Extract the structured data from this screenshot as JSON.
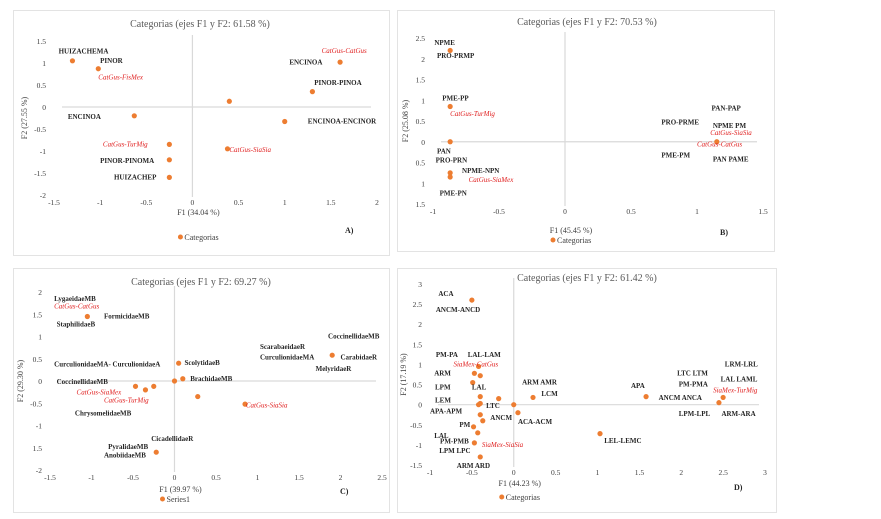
{
  "colors": {
    "point": "#ed7d31",
    "axis": "#d9d9d9",
    "red_label": "#e02020",
    "text": "#262626"
  },
  "chart_data": [
    {
      "id": "A",
      "type": "scatter",
      "title": "Categorias (ejes F1 y F2: 61.58 %)",
      "xlabel": "F1 (34.04 %)",
      "ylabel": "F2 (27.55 %)",
      "xlim": [
        -1.5,
        2
      ],
      "ylim": [
        -2,
        1.5
      ],
      "xticks": [
        "-1.5",
        "-1",
        "-0.5",
        "0",
        "0.5",
        "1",
        "1.5",
        "2"
      ],
      "yticks": [
        "1.5",
        "1",
        "0.5",
        "0",
        "-0.5",
        "-1",
        "-1.5",
        "-2"
      ],
      "legend": "Categorias",
      "legend_position": "bottom",
      "panel_tag": "A)",
      "points": [
        [
          -1.3,
          1.05
        ],
        [
          -1.02,
          0.87
        ],
        [
          -0.63,
          -0.2
        ],
        [
          -0.25,
          -0.85
        ],
        [
          -0.25,
          -1.2
        ],
        [
          -0.25,
          -1.6
        ],
        [
          0.38,
          -0.95
        ],
        [
          0.4,
          0.13
        ],
        [
          1.0,
          -0.33
        ],
        [
          1.3,
          0.35
        ],
        [
          1.6,
          1.02
        ]
      ],
      "labels": [
        {
          "text": "HUIZACHEMA",
          "x": -1.45,
          "y": 1.22,
          "red": false
        },
        {
          "text": "PINOR",
          "x": -1.0,
          "y": 1.0,
          "red": false
        },
        {
          "text": "CatGus-FisMex",
          "x": -1.02,
          "y": 0.62,
          "red": true
        },
        {
          "text": "ENCINOA",
          "x": -1.35,
          "y": -0.27,
          "red": false
        },
        {
          "text": "CatGus-TurMig",
          "x": -0.97,
          "y": -0.9,
          "red": true
        },
        {
          "text": "PINOR-PINOMA",
          "x": -1.0,
          "y": -1.27,
          "red": false
        },
        {
          "text": "HUIZACHEP",
          "x": -0.85,
          "y": -1.65,
          "red": false
        },
        {
          "text": "CatGus-SiaSia",
          "x": 0.4,
          "y": -1.02,
          "red": true
        },
        {
          "text": "ENCINOA-ENCINOR",
          "x": 1.25,
          "y": -0.38,
          "red": false
        },
        {
          "text": "PINOR-PINOA",
          "x": 1.32,
          "y": 0.5,
          "red": false
        },
        {
          "text": "ENCINOA",
          "x": 1.05,
          "y": 0.97,
          "red": false
        },
        {
          "text": "CatGus-CatGus",
          "x": 1.4,
          "y": 1.23,
          "red": true
        }
      ]
    },
    {
      "id": "B",
      "type": "scatter",
      "title": "Categorias (ejes F1 y F2: 70.53 %)",
      "xlabel": "F1 (45.45 %)",
      "ylabel": "F2 (25.08 %)",
      "xlim": [
        -1,
        1.5
      ],
      "ylim": [
        -1.5,
        2.5
      ],
      "xticks": [
        "-1",
        "-0.5",
        "0",
        "0.5",
        "1",
        "1.5"
      ],
      "yticks": [
        "2.5",
        "2",
        "1.5",
        "1",
        "0.5",
        "0",
        "0.5",
        "1",
        "1.5"
      ],
      "legend": "Categorias",
      "legend_position": "bottom",
      "panel_tag": "B)",
      "points": [
        [
          -0.87,
          2.2
        ],
        [
          -0.87,
          0.85
        ],
        [
          -0.87,
          0.0
        ],
        [
          -0.87,
          -0.75
        ],
        [
          -0.87,
          -0.85
        ],
        [
          1.15,
          0.0
        ]
      ],
      "labels": [
        {
          "text": "NPME",
          "x": -0.99,
          "y": 2.33,
          "red": false
        },
        {
          "text": "PRO-PRMP",
          "x": -0.97,
          "y": 2.02,
          "red": false
        },
        {
          "text": "PME-PP",
          "x": -0.93,
          "y": 1.0,
          "red": false
        },
        {
          "text": "CatGus-TurMig",
          "x": -0.87,
          "y": 0.62,
          "red": true
        },
        {
          "text": "PAN",
          "x": -0.97,
          "y": -0.28,
          "red": false
        },
        {
          "text": "PRO-PRN",
          "x": -0.98,
          "y": -0.5,
          "red": false
        },
        {
          "text": "NPME-NPN",
          "x": -0.78,
          "y": -0.75,
          "red": false
        },
        {
          "text": "CatGus-SiaMex",
          "x": -0.73,
          "y": -0.97,
          "red": true
        },
        {
          "text": "PME-PN",
          "x": -0.95,
          "y": -1.3,
          "red": false
        },
        {
          "text": "PRO-PRME",
          "x": 0.73,
          "y": 0.42,
          "red": false
        },
        {
          "text": "PAN-PAP",
          "x": 1.11,
          "y": 0.75,
          "red": false
        },
        {
          "text": "NPME PM",
          "x": 1.12,
          "y": 0.33,
          "red": false
        },
        {
          "text": "CatGus-SiaSia",
          "x": 1.1,
          "y": 0.16,
          "red": true
        },
        {
          "text": "CatGus-CatGus",
          "x": 1.0,
          "y": -0.12,
          "red": true
        },
        {
          "text": "PME-PM",
          "x": 0.73,
          "y": -0.38,
          "red": false
        },
        {
          "text": "PAN PAME",
          "x": 1.12,
          "y": -0.48,
          "red": false
        }
      ]
    },
    {
      "id": "C",
      "type": "scatter",
      "title": "Categorias (ejes F1 y F2: 69.27 %)",
      "xlabel": "F1 (39.97 %)",
      "ylabel": "F2 (29.30 %)",
      "xlim": [
        -1.5,
        2.5
      ],
      "ylim": [
        -2,
        2
      ],
      "xticks": [
        "-1.5",
        "-1",
        "-0.5",
        "0",
        "0.5",
        "1",
        "1.5",
        "2",
        "2.5"
      ],
      "yticks": [
        "2",
        "1.5",
        "1",
        "0.5",
        "0",
        "-0.5",
        "-1",
        "1.5",
        "-2"
      ],
      "legend": "Series1",
      "legend_position": "bottom",
      "panel_tag": "C)",
      "points": [
        [
          -1.05,
          1.45
        ],
        [
          -0.47,
          -0.12
        ],
        [
          -0.35,
          -0.2
        ],
        [
          -0.25,
          -0.12
        ],
        [
          -0.22,
          -1.6
        ],
        [
          0.0,
          0.0
        ],
        [
          0.1,
          0.05
        ],
        [
          0.05,
          0.4
        ],
        [
          0.28,
          -0.35
        ],
        [
          0.85,
          -0.52
        ],
        [
          1.9,
          0.58
        ]
      ],
      "labels": [
        {
          "text": "LygaeidaeMB",
          "x": -1.45,
          "y": 1.8,
          "red": false
        },
        {
          "text": "CatGus-CatGus",
          "x": -1.45,
          "y": 1.63,
          "red": true
        },
        {
          "text": "FormicidaeMB",
          "x": -0.85,
          "y": 1.4,
          "red": false
        },
        {
          "text": "StaphilidaeB",
          "x": -1.42,
          "y": 1.22,
          "red": false
        },
        {
          "text": "CurculionidaeMA- CurculionidaeA",
          "x": -1.45,
          "y": 0.33,
          "red": false
        },
        {
          "text": "ScolytidaeB",
          "x": 0.12,
          "y": 0.36,
          "red": false
        },
        {
          "text": "BrachidaeMB",
          "x": 0.19,
          "y": 0.0,
          "red": false
        },
        {
          "text": "CoccinellidaeMB",
          "x": -1.42,
          "y": -0.07,
          "red": false
        },
        {
          "text": "CatGus-SiaMex",
          "x": -1.18,
          "y": -0.3,
          "red": true
        },
        {
          "text": "CatGus-TurMig",
          "x": -0.85,
          "y": -0.48,
          "red": true
        },
        {
          "text": "ChrysomelidaeMB",
          "x": -1.2,
          "y": -0.77,
          "red": false
        },
        {
          "text": "CatGus-SiaSia",
          "x": 0.86,
          "y": -0.6,
          "red": true
        },
        {
          "text": "CicadellidaeR",
          "x": -0.28,
          "y": -1.35,
          "red": false
        },
        {
          "text": "PyralidaeMB",
          "x": -0.8,
          "y": -1.53,
          "red": false
        },
        {
          "text": "AnobiidaeMB",
          "x": -0.85,
          "y": -1.72,
          "red": false
        },
        {
          "text": "CoccinellidaeMB",
          "x": 1.85,
          "y": 0.95,
          "red": false
        },
        {
          "text": "ScarabaeidaeR",
          "x": 1.03,
          "y": 0.72,
          "red": false
        },
        {
          "text": "CurculionidaeMA",
          "x": 1.03,
          "y": 0.48,
          "red": false
        },
        {
          "text": "CarabidaeR",
          "x": 2.0,
          "y": 0.48,
          "red": false
        },
        {
          "text": "MelyridaeR",
          "x": 1.7,
          "y": 0.22,
          "red": false
        }
      ]
    },
    {
      "id": "D",
      "type": "scatter",
      "title": "Categorias (ejes F1 y F2: 61.42 %)",
      "xlabel": "F1 (44.23 %)",
      "ylabel": "F2 (17.19 %)",
      "xlim": [
        -1,
        3
      ],
      "ylim": [
        -1.5,
        3
      ],
      "xticks": [
        "-1",
        "-0.5",
        "0",
        "0.5",
        "1",
        "1.5",
        "2",
        "2.5",
        "3"
      ],
      "yticks": [
        "3",
        "2.5",
        "2",
        "1.5",
        "1",
        "0.5",
        "0",
        "-0.5",
        "-1",
        "-1.5"
      ],
      "legend": "Categorias",
      "legend_position": "bottom",
      "panel_tag": "D)",
      "points": [
        [
          -0.5,
          2.6
        ],
        [
          -0.42,
          0.95
        ],
        [
          -0.47,
          0.78
        ],
        [
          -0.4,
          0.72
        ],
        [
          -0.49,
          0.55
        ],
        [
          -0.4,
          0.2
        ],
        [
          -0.42,
          0.0
        ],
        [
          -0.4,
          0.03
        ],
        [
          -0.18,
          0.15
        ],
        [
          -0.4,
          -0.25
        ],
        [
          -0.37,
          -0.4
        ],
        [
          -0.48,
          -0.55
        ],
        [
          -0.43,
          -0.7
        ],
        [
          -0.47,
          -0.95
        ],
        [
          -0.4,
          -1.3
        ],
        [
          0.0,
          0.0
        ],
        [
          0.05,
          -0.2
        ],
        [
          0.23,
          0.18
        ],
        [
          1.03,
          -0.72
        ],
        [
          1.58,
          0.2
        ],
        [
          2.45,
          0.05
        ],
        [
          2.5,
          0.18
        ]
      ],
      "labels": [
        {
          "text": "ACA",
          "x": -0.9,
          "y": 2.7,
          "red": false
        },
        {
          "text": "ANCM-ANCD",
          "x": -0.93,
          "y": 2.3,
          "red": false
        },
        {
          "text": "PM-PA",
          "x": -0.93,
          "y": 1.18,
          "red": false
        },
        {
          "text": "LAL-LAM",
          "x": -0.55,
          "y": 1.18,
          "red": false
        },
        {
          "text": "SiaMex-CatGus",
          "x": -0.72,
          "y": 0.95,
          "red": true
        },
        {
          "text": "ARM",
          "x": -0.95,
          "y": 0.72,
          "red": false
        },
        {
          "text": "LPM",
          "x": -0.94,
          "y": 0.38,
          "red": false
        },
        {
          "text": "LAL",
          "x": -0.5,
          "y": 0.38,
          "red": false
        },
        {
          "text": "LEM",
          "x": -0.94,
          "y": 0.05,
          "red": false
        },
        {
          "text": "APA-APM",
          "x": -1.0,
          "y": -0.22,
          "red": false
        },
        {
          "text": "LTC",
          "x": -0.33,
          "y": -0.08,
          "red": false
        },
        {
          "text": "ANCM",
          "x": -0.28,
          "y": -0.38,
          "red": false
        },
        {
          "text": "ACA-ACM",
          "x": 0.05,
          "y": -0.48,
          "red": false
        },
        {
          "text": "PM",
          "x": -0.65,
          "y": -0.55,
          "red": false
        },
        {
          "text": "LAL",
          "x": -0.95,
          "y": -0.83,
          "red": false
        },
        {
          "text": "PM-PMB",
          "x": -0.88,
          "y": -0.97,
          "red": false
        },
        {
          "text": "LPM LPC",
          "x": -0.89,
          "y": -1.2,
          "red": false
        },
        {
          "text": "SiaMex-SiaSia",
          "x": -0.38,
          "y": -1.05,
          "red": true
        },
        {
          "text": "ARM ARD",
          "x": -0.68,
          "y": -1.57,
          "red": false
        },
        {
          "text": "ARM AMR",
          "x": 0.1,
          "y": 0.5,
          "red": false
        },
        {
          "text": "LCM",
          "x": 0.33,
          "y": 0.22,
          "red": false
        },
        {
          "text": "APA",
          "x": 1.4,
          "y": 0.42,
          "red": false
        },
        {
          "text": "LEL-LEMC",
          "x": 1.08,
          "y": -0.95,
          "red": false
        },
        {
          "text": "LTC LTM",
          "x": 1.95,
          "y": 0.72,
          "red": false
        },
        {
          "text": "LRM-LRL",
          "x": 2.52,
          "y": 0.95,
          "red": false
        },
        {
          "text": "PM-PMA",
          "x": 1.97,
          "y": 0.45,
          "red": false
        },
        {
          "text": "LAL LAML",
          "x": 2.47,
          "y": 0.58,
          "red": false
        },
        {
          "text": "SiaMex-TurMig",
          "x": 2.38,
          "y": 0.3,
          "red": true
        },
        {
          "text": "ANCM ANCA",
          "x": 1.73,
          "y": 0.12,
          "red": false
        },
        {
          "text": "LPM-LPL",
          "x": 1.97,
          "y": -0.28,
          "red": false
        },
        {
          "text": "ARM-ARA",
          "x": 2.48,
          "y": -0.28,
          "red": false
        }
      ]
    }
  ]
}
